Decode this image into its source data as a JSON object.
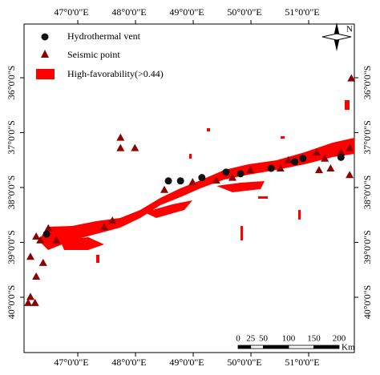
{
  "map": {
    "lon_ticks": [
      {
        "value": 47,
        "label": "47°0'0\"E"
      },
      {
        "value": 48,
        "label": "48°0'0\"E"
      },
      {
        "value": 49,
        "label": "49°0'0\"E"
      },
      {
        "value": 50,
        "label": "50°0'0\"E"
      },
      {
        "value": 51,
        "label": "51°0'0\"E"
      }
    ],
    "lat_ticks": [
      {
        "value": -36,
        "label": "36°0'0\"S"
      },
      {
        "value": -37,
        "label": "37°0'0\"S"
      },
      {
        "value": -38,
        "label": "38°0'0\"S"
      },
      {
        "value": -39,
        "label": "39°0'0\"S"
      },
      {
        "value": -40,
        "label": "40°0'0\"S"
      }
    ],
    "legend": {
      "vent": "Hydrothermal vent",
      "seismic": "Seismic point",
      "favorability": "High-favorability(>0.44)"
    },
    "north": "N",
    "scale": {
      "ticks": [
        0,
        25,
        50,
        100,
        150,
        200
      ],
      "unit": "Km"
    },
    "vents": {
      "lon": [
        48.57,
        48.78,
        49.15,
        49.57,
        49.82,
        50.35,
        50.76,
        50.9,
        51.56,
        46.46
      ],
      "lat": [
        -37.88,
        -37.88,
        -37.82,
        -37.72,
        -37.75,
        -37.65,
        -37.53,
        -37.47,
        -37.45,
        -38.85
      ]
    },
    "seismic": {
      "lon": [
        46.18,
        46.35,
        46.28,
        46.49,
        46.63,
        46.4,
        46.28,
        46.18,
        46.26,
        46.14,
        47.74,
        47.74,
        47.99,
        47.6,
        47.46,
        48.5,
        48.99,
        49.4,
        49.68,
        49.99,
        50.51,
        50.65,
        51.14,
        51.28,
        51.38,
        51.56,
        51.74,
        51.71,
        51.71,
        51.18
      ],
      "lat": [
        -39.26,
        -38.96,
        -38.89,
        -38.74,
        -38.96,
        -39.37,
        -39.62,
        -39.99,
        -40.1,
        -40.1,
        -37.09,
        -37.28,
        -37.28,
        -38.6,
        -38.72,
        -38.04,
        -37.9,
        -37.87,
        -37.82,
        -37.68,
        -37.65,
        -37.5,
        -37.36,
        -37.47,
        -37.65,
        -37.36,
        -36.01,
        -37.28,
        -37.77,
        -37.68
      ]
    }
  }
}
